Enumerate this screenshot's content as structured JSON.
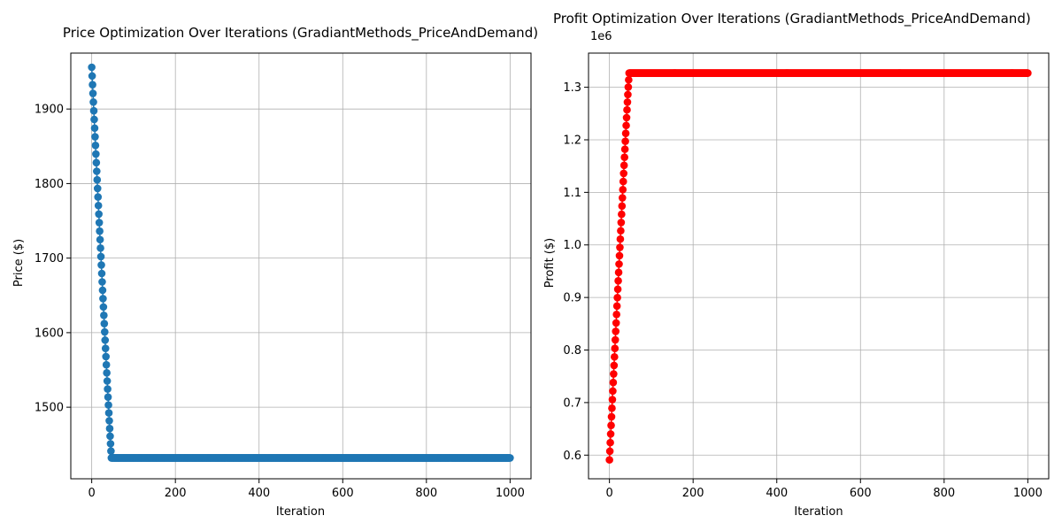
{
  "chart_data": [
    {
      "type": "line",
      "title": "Price Optimization Over Iterations (GradiantMethods_PriceAndDemand)",
      "xlabel": "Iteration",
      "ylabel": "Price ($)",
      "xlim": [
        -50,
        1050
      ],
      "ylim": [
        1404,
        1975
      ],
      "xticks": [
        0,
        200,
        400,
        600,
        800,
        1000
      ],
      "yticks": [
        1500,
        1600,
        1700,
        1800,
        1900
      ],
      "ytick_labels": [
        "1500",
        "1600",
        "1700",
        "1800",
        "1900"
      ],
      "y_offset_label": "",
      "grid": true,
      "marker": "circle",
      "color": "#1f77b4",
      "series": [
        {
          "x_range": [
            0,
            1000
          ],
          "x_step": 1,
          "start_value": 1956,
          "converged_value": 1432,
          "decay_rate": 0.00256,
          "convergence_iteration": 47
        }
      ]
    },
    {
      "type": "line",
      "title": "Profit Optimization Over Iterations (GradiantMethods_PriceAndDemand)",
      "xlabel": "Iteration",
      "ylabel": "Profit ($)",
      "xlim": [
        -50,
        1050
      ],
      "ylim": [
        0.555,
        1.365
      ],
      "xticks": [
        0,
        200,
        400,
        600,
        800,
        1000
      ],
      "yticks": [
        0.6,
        0.7,
        0.8,
        0.9,
        1.0,
        1.1,
        1.2,
        1.3
      ],
      "ytick_labels": [
        "0.6",
        "0.7",
        "0.8",
        "0.9",
        "1.0",
        "1.1",
        "1.2",
        "1.3"
      ],
      "y_offset_label": "1e6",
      "grid": true,
      "marker": "circle",
      "color": "#ff0000",
      "series": [
        {
          "x_range": [
            0,
            1000
          ],
          "x_step": 1,
          "start_value": 0.591,
          "converged_value": 1.327,
          "growth_rate": 0.00252,
          "convergence_iteration": 47
        }
      ]
    }
  ]
}
